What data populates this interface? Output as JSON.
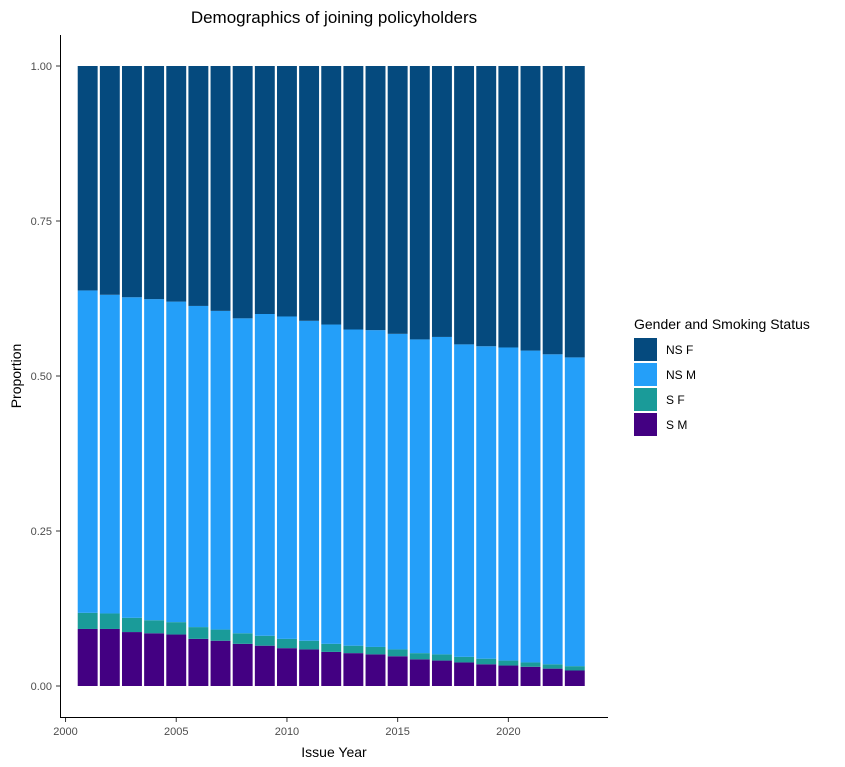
{
  "chart_data": {
    "type": "bar",
    "stacked": true,
    "title": "Demographics of joining policyholders",
    "xlabel": "Issue Year",
    "ylabel": "Proportion",
    "xlim": [
      1999.75,
      2024.5
    ],
    "ylim": [
      -0.05,
      1.05
    ],
    "x_ticks": [
      2000,
      2005,
      2010,
      2015,
      2020
    ],
    "x_tick_labels": [
      "2000",
      "2005",
      "2010",
      "2015",
      "2020"
    ],
    "y_ticks": [
      0,
      0.25,
      0.5,
      0.75,
      1
    ],
    "y_tick_labels": [
      "0.00",
      "0.25",
      "0.50",
      "0.75",
      "1.00"
    ],
    "grid": false,
    "legend": {
      "title": "Gender and Smoking Status",
      "position": "right"
    },
    "categories": [
      2001,
      2002,
      2003,
      2004,
      2005,
      2006,
      2007,
      2008,
      2009,
      2010,
      2011,
      2012,
      2013,
      2014,
      2015,
      2016,
      2017,
      2018,
      2019,
      2020,
      2021,
      2022,
      2023
    ],
    "series": [
      {
        "name": "S M",
        "color": "#430082",
        "values": [
          0.092,
          0.092,
          0.087,
          0.085,
          0.083,
          0.076,
          0.073,
          0.068,
          0.065,
          0.061,
          0.059,
          0.055,
          0.053,
          0.051,
          0.048,
          0.043,
          0.041,
          0.038,
          0.035,
          0.033,
          0.031,
          0.028,
          0.025
        ]
      },
      {
        "name": "S F",
        "color": "#1a9b99",
        "values": [
          0.026,
          0.025,
          0.023,
          0.021,
          0.02,
          0.019,
          0.018,
          0.017,
          0.016,
          0.015,
          0.014,
          0.013,
          0.012,
          0.012,
          0.011,
          0.01,
          0.01,
          0.009,
          0.009,
          0.008,
          0.007,
          0.007,
          0.007
        ]
      },
      {
        "name": "NS M",
        "color": "#249ff9",
        "values": [
          0.52,
          0.514,
          0.517,
          0.518,
          0.517,
          0.518,
          0.514,
          0.508,
          0.519,
          0.52,
          0.516,
          0.515,
          0.51,
          0.511,
          0.509,
          0.506,
          0.512,
          0.504,
          0.504,
          0.505,
          0.503,
          0.5,
          0.498
        ]
      },
      {
        "name": "NS F",
        "color": "#054a7e",
        "values": [
          0.362,
          0.369,
          0.373,
          0.376,
          0.38,
          0.387,
          0.395,
          0.407,
          0.4,
          0.404,
          0.411,
          0.417,
          0.425,
          0.426,
          0.432,
          0.441,
          0.437,
          0.449,
          0.452,
          0.454,
          0.459,
          0.465,
          0.47
        ]
      }
    ],
    "legend_order": [
      "NS F",
      "NS M",
      "S F",
      "S M"
    ]
  }
}
